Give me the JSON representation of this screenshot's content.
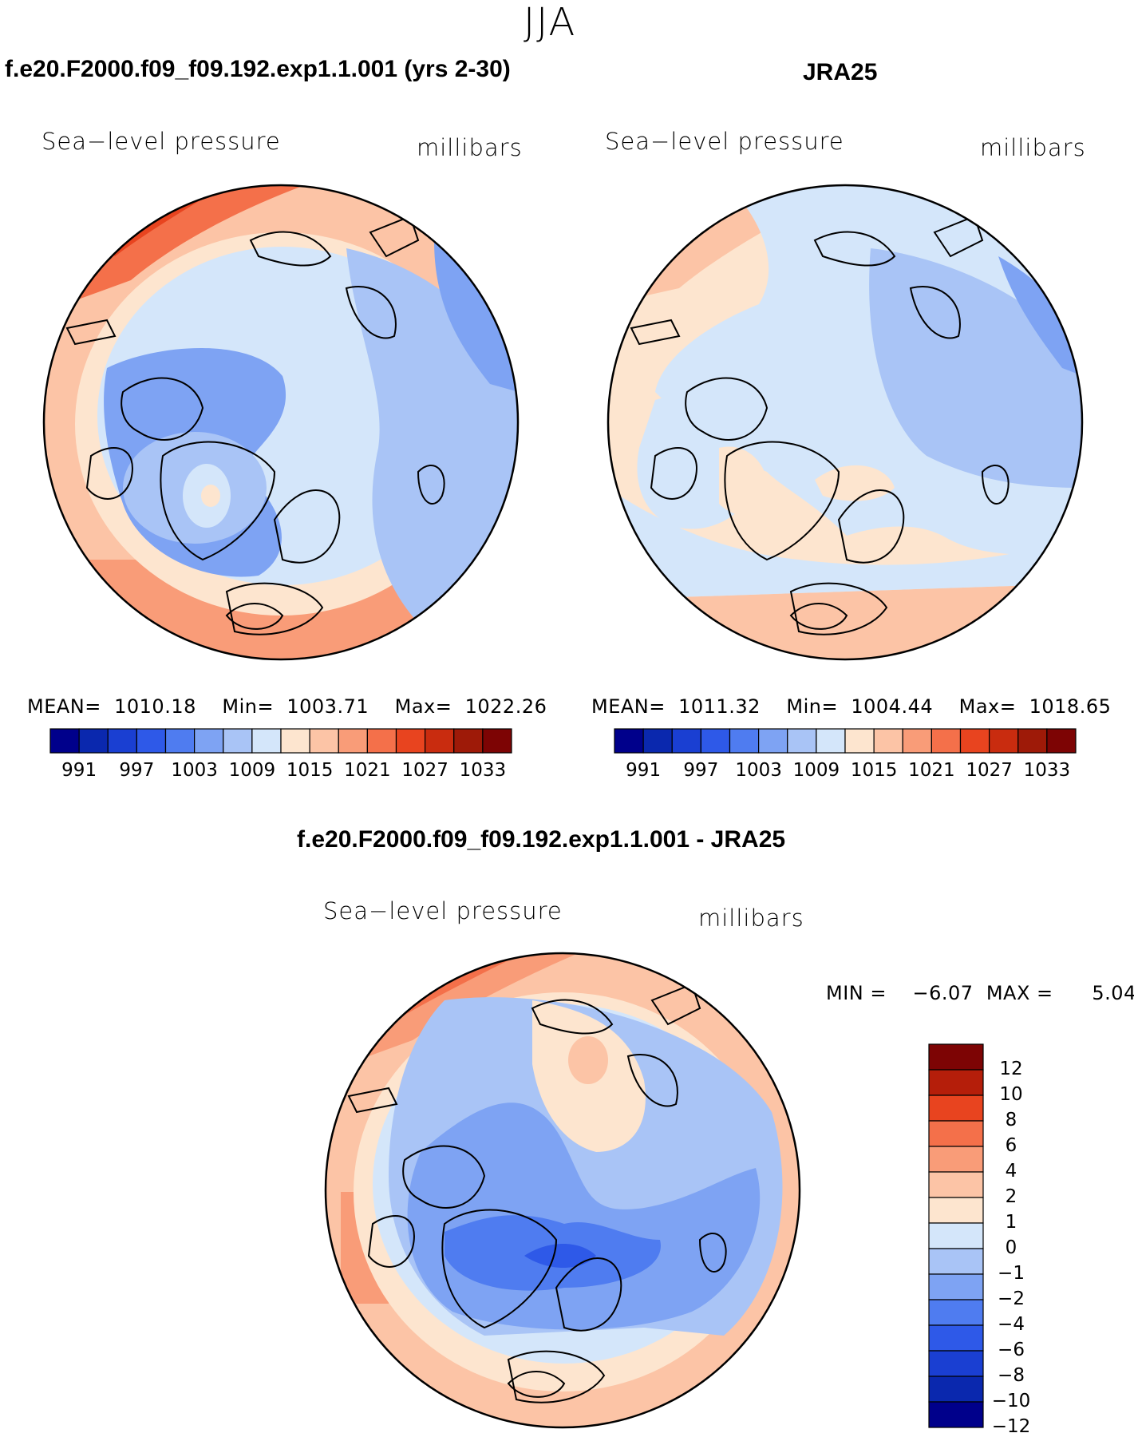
{
  "figure": {
    "season": "JJA",
    "diff_title": "f.e20.F2000.f09_f09.192.exp1.1.001 - JRA25"
  },
  "panels": [
    {
      "title": "f.e20.F2000.f09_f09.192.exp1.1.001 (yrs 2-30)",
      "variable": "Sea−level pressure",
      "units": "millibars",
      "mean_label": "MEAN=",
      "mean": "1010.18",
      "min_label": "Min=",
      "min": "1003.71",
      "max_label": "Max=",
      "max": "1022.26"
    },
    {
      "title": "JRA25",
      "variable": "Sea−level pressure",
      "units": "millibars",
      "mean_label": "MEAN=",
      "mean": "1011.32",
      "min_label": "Min=",
      "min": "1004.44",
      "max_label": "Max=",
      "max": "1018.65"
    },
    {
      "variable": "Sea−level pressure",
      "units": "millibars",
      "min_label": "MIN =",
      "min": "−6.07",
      "max_label": "MAX =",
      "max": "5.04"
    }
  ],
  "colorbar_abs": {
    "colors": [
      "#00008b",
      "#0a28ae",
      "#1a3fd2",
      "#2e59e8",
      "#4f7cf0",
      "#7ea3f3",
      "#a9c4f6",
      "#d4e6fa",
      "#fde5cf",
      "#fcc4a6",
      "#f99c78",
      "#f4704a",
      "#e8441f",
      "#c92c0f",
      "#9e1a08",
      "#7d0404"
    ],
    "tick_labels": [
      "991",
      "997",
      "1003",
      "1009",
      "1015",
      "1021",
      "1027",
      "1033"
    ]
  },
  "colorbar_diff": {
    "colors": [
      "#7d0404",
      "#b51e0a",
      "#e8441f",
      "#f4704a",
      "#f99c78",
      "#fcc4a6",
      "#fde5cf",
      "#d4e6fa",
      "#a9c4f6",
      "#7ea3f3",
      "#4f7cf0",
      "#2e59e8",
      "#1a3fd2",
      "#0a28ae",
      "#00008b"
    ],
    "tick_labels": [
      "12",
      "10",
      "8",
      "6",
      "4",
      "2",
      "1",
      "0",
      "−1",
      "−2",
      "−4",
      "−6",
      "−8",
      "−10",
      "−12"
    ]
  },
  "map_colors": {
    "lightest_blue": "#d4e6fa",
    "light_blue": "#a9c4f6",
    "mid_blue": "#7ea3f3",
    "blue": "#4f7cf0",
    "deep_blue": "#2e59e8",
    "cream": "#fde5cf",
    "peach": "#fcc4a6",
    "salmon": "#f99c78",
    "orange": "#f4704a",
    "red_orange": "#e8441f"
  }
}
